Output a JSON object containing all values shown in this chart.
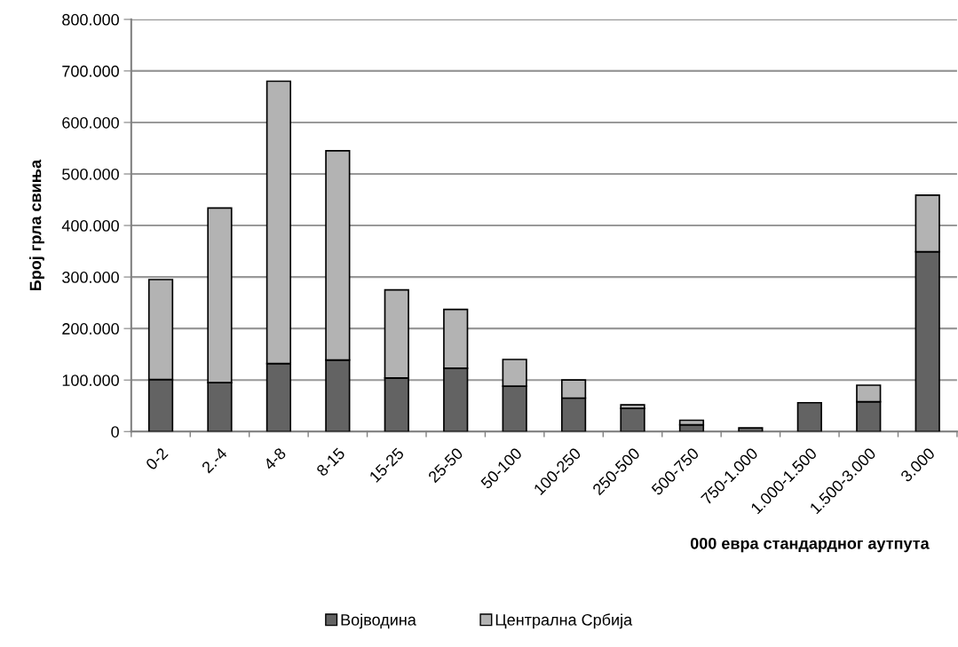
{
  "chart_data": {
    "type": "bar",
    "stacked": true,
    "xlabel": "000 евра стандардног аутпута",
    "ylabel": "Број грла свиња",
    "categories": [
      "0-2",
      "2.-4",
      "4-8",
      "8-15",
      "15-25",
      "25-50",
      "50-100",
      "100-250",
      "250-500",
      "500-750",
      "750-1.000",
      "1.000-1.500",
      "1.500-3.000",
      "3.000"
    ],
    "series": [
      {
        "name": "Војводина",
        "color": "#636363",
        "values": [
          101000,
          95000,
          132000,
          139000,
          104000,
          123000,
          88000,
          65000,
          45000,
          13000,
          7000,
          56000,
          58000,
          349000
        ]
      },
      {
        "name": "Централна Србија",
        "color": "#b3b3b3",
        "values": [
          194000,
          339000,
          548000,
          406000,
          171000,
          114000,
          52000,
          35000,
          7000,
          9000,
          null,
          null,
          32000,
          110000
        ]
      }
    ],
    "ylim": [
      0,
      800000
    ],
    "yticks": [
      {
        "value": 0,
        "label": "0"
      },
      {
        "value": 100000,
        "label": "100.000"
      },
      {
        "value": 200000,
        "label": "200.000"
      },
      {
        "value": 300000,
        "label": "300.000"
      },
      {
        "value": 400000,
        "label": "400.000"
      },
      {
        "value": 500000,
        "label": "500.000"
      },
      {
        "value": 600000,
        "label": "600.000"
      },
      {
        "value": 700000,
        "label": "700.000"
      },
      {
        "value": 800000,
        "label": "800.000"
      }
    ],
    "grid": "y",
    "legend": "bottom"
  }
}
